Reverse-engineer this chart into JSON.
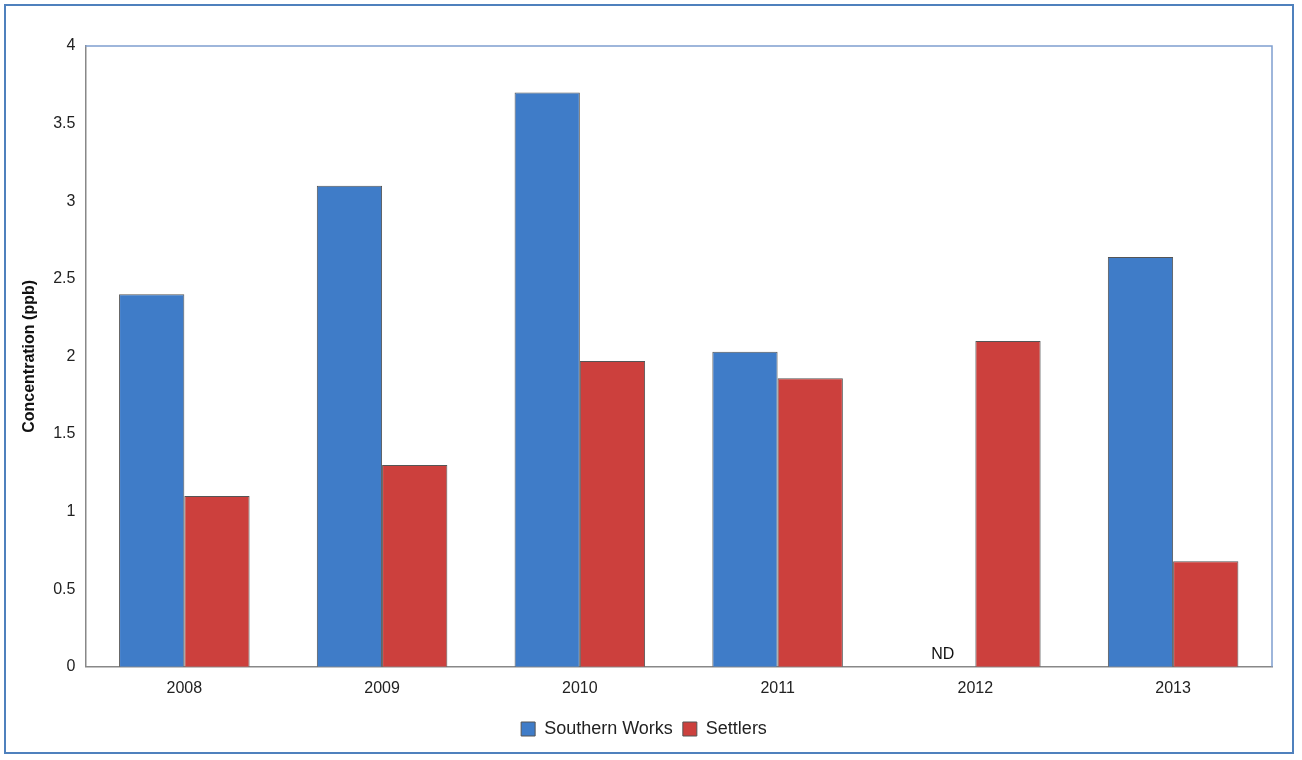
{
  "chart_data": {
    "type": "bar",
    "ylabel": "Concentration (ppb)",
    "categories": [
      "2008",
      "2009",
      "2010",
      "2011",
      "2012",
      "2013"
    ],
    "series": [
      {
        "name": "Southern Works",
        "color": "#3f7cc8",
        "values": [
          2.4,
          3.1,
          3.7,
          2.03,
          null,
          2.64
        ]
      },
      {
        "name": "Settlers",
        "color": "#cc403d",
        "values": [
          1.1,
          1.3,
          1.97,
          1.86,
          2.1,
          0.68
        ]
      }
    ],
    "ylim": [
      0,
      4
    ],
    "yticks": [
      0,
      0.5,
      1,
      1.5,
      2,
      2.5,
      3,
      3.5,
      4
    ],
    "grid": false,
    "legend": "bottom",
    "annotations": [
      {
        "text": "ND",
        "x": "2012",
        "y": 0
      }
    ]
  }
}
